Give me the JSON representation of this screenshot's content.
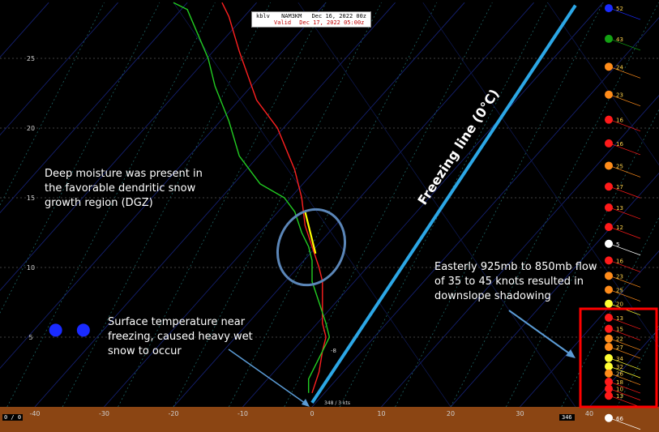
{
  "header": {
    "station": "kblv",
    "model": "NAM3KM",
    "init": "Dec 16, 2022   00z",
    "valid_label": "Valid",
    "valid": "Dec 17, 2022   05:00z"
  },
  "chart_data": {
    "type": "line",
    "title": "",
    "xlabel": "",
    "ylabel": "",
    "x_ticks": [
      -40,
      -30,
      -20,
      -10,
      0,
      10,
      20,
      30,
      40
    ],
    "y_ticks": [
      5,
      10,
      15,
      20,
      25
    ],
    "xlim": [
      -45,
      48
    ],
    "ylim": [
      0,
      29
    ],
    "series": [
      {
        "key": "temperature",
        "color": "#ff2020",
        "points": [
          [
            -13,
            29
          ],
          [
            -12,
            28
          ],
          [
            -10.5,
            25.5
          ],
          [
            -8,
            22
          ],
          [
            -5,
            20
          ],
          [
            -2.5,
            17
          ],
          [
            -1.5,
            15
          ],
          [
            -1,
            13
          ],
          [
            0,
            11.5
          ],
          [
            1,
            10
          ],
          [
            1.5,
            9
          ],
          [
            1.5,
            8
          ],
          [
            1.5,
            6
          ],
          [
            2,
            5
          ],
          [
            1.5,
            4
          ],
          [
            1,
            2.5
          ],
          [
            0,
            1
          ]
        ]
      },
      {
        "key": "dewpoint",
        "color": "#22cc22",
        "points": [
          [
            -20,
            29
          ],
          [
            -18,
            28.5
          ],
          [
            -15,
            25
          ],
          [
            -14,
            23
          ],
          [
            -12,
            20.5
          ],
          [
            -10.5,
            18
          ],
          [
            -7.5,
            16
          ],
          [
            -4,
            15
          ],
          [
            -2.5,
            14
          ],
          [
            -1.5,
            12.5
          ],
          [
            -0.5,
            11.5
          ],
          [
            0,
            10.5
          ],
          [
            0,
            9
          ],
          [
            1,
            7.5
          ],
          [
            2,
            6
          ],
          [
            2.5,
            5
          ],
          [
            1,
            3.5
          ],
          [
            -0.5,
            2
          ],
          [
            -0.5,
            1
          ]
        ]
      },
      {
        "key": "dgz-segment",
        "color": "#ffff00",
        "points": [
          [
            -1,
            14
          ],
          [
            -0.5,
            13
          ],
          [
            0,
            12
          ],
          [
            0.5,
            11
          ]
        ]
      }
    ],
    "freezing_line": {
      "label": "Freezing line (0°C)",
      "from": [
        0,
        0.3
      ],
      "to": [
        38,
        28.8
      ],
      "color": "#2ca7e6"
    },
    "surface_marker": "-8",
    "wind_column": [
      {
        "speed": "52",
        "color": "#1a2bff",
        "y": 28.6
      },
      {
        "speed": "43",
        "color": "#13a013",
        "y": 26.4
      },
      {
        "speed": "24",
        "color": "#ff8c1a",
        "y": 24.4
      },
      {
        "speed": "23",
        "color": "#ff8c1a",
        "y": 22.4
      },
      {
        "speed": "16",
        "color": "#ff1a1a",
        "y": 20.6
      },
      {
        "speed": "16",
        "color": "#ff1a1a",
        "y": 18.9
      },
      {
        "speed": "25",
        "color": "#ff8c1a",
        "y": 17.3
      },
      {
        "speed": "17",
        "color": "#ff1a1a",
        "y": 15.8
      },
      {
        "speed": "13",
        "color": "#ff1a1a",
        "y": 14.3
      },
      {
        "speed": "12",
        "color": "#ff1a1a",
        "y": 12.9
      },
      {
        "speed": "5",
        "color": "#ffffff",
        "y": 11.7
      },
      {
        "speed": "16",
        "color": "#ff1a1a",
        "y": 10.5
      },
      {
        "speed": "23",
        "color": "#ff8c1a",
        "y": 9.4
      },
      {
        "speed": "25",
        "color": "#ff8c1a",
        "y": 8.4
      },
      {
        "speed": "20",
        "color": "#ffff33",
        "y": 7.4
      },
      {
        "speed": "13",
        "color": "#ff1a1a",
        "y": 6.4
      },
      {
        "speed": "15",
        "color": "#ff1a1a",
        "y": 5.6
      },
      {
        "speed": "22",
        "color": "#ff8c1a",
        "y": 4.9
      },
      {
        "speed": "27",
        "color": "#ff8c1a",
        "y": 4.3
      },
      {
        "speed": "34",
        "color": "#ffff33",
        "y": 3.5
      },
      {
        "speed": "32",
        "color": "#ffff33",
        "y": 2.9
      },
      {
        "speed": "26",
        "color": "#ff8c1a",
        "y": 2.4
      },
      {
        "speed": "18",
        "color": "#ff1a1a",
        "y": 1.8
      },
      {
        "speed": "10",
        "color": "#ff1a1a",
        "y": 1.3
      },
      {
        "speed": "13",
        "color": "#ff1a1a",
        "y": 0.8
      },
      {
        "speed": "66",
        "color": "#ffffff",
        "y": -0.8
      }
    ],
    "blue_dots": [
      [
        -37,
        5.5
      ],
      [
        -33,
        5.5
      ]
    ]
  },
  "annotations": {
    "dgz": [
      "Deep moisture was present in",
      "the favorable dendritic snow",
      "growth region (DGZ)"
    ],
    "surface": [
      "Surface temperature near",
      "freezing, caused heavy wet",
      "snow to occur"
    ],
    "flow": [
      "Easterly 925mb to 850mb flow",
      "of 35 to 45 knots resulted in",
      "downslope shadowing"
    ]
  },
  "footer": {
    "left_counter": "0 / 0",
    "right_value": "346",
    "surface_label": "348 / 3 kts"
  },
  "colors": {
    "ground": "#8b4513",
    "highlight_box": "#ff0000",
    "ellipse": "#5b86b8",
    "arrow": "#5b9bd5"
  }
}
